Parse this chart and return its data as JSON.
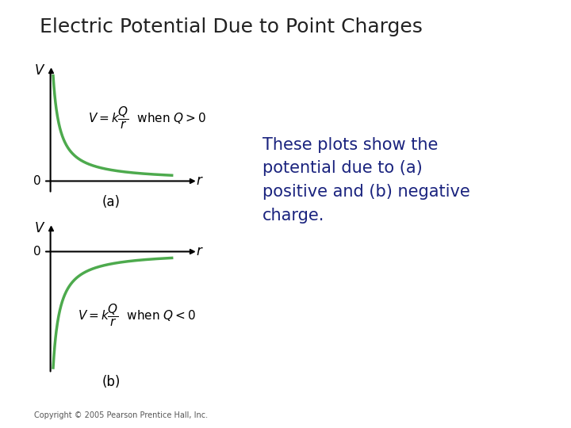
{
  "title": "Electric Potential Due to Point Charges",
  "title_color": "#222222",
  "title_fontsize": 18,
  "title_fontweight": "normal",
  "background_color": "#ffffff",
  "curve_color": "#4daa4d",
  "curve_linewidth": 2.5,
  "axes_color": "#000000",
  "text_color": "#000000",
  "label_color": "#1a237e",
  "eq_a": "$V = k\\dfrac{Q}{r}$  when $Q > 0$",
  "eq_b": "$V = k\\dfrac{Q}{r}$  when $Q < 0$",
  "label_a": "(a)",
  "label_b": "(b)",
  "desc_text": "These plots show the\npotential due to (a)\npositive and (b) negative\ncharge.",
  "copyright": "Copyright © 2005 Pearson Prentice Hall, Inc.",
  "r_min": 0.12,
  "desc_fontsize": 15,
  "eq_fontsize": 11,
  "axes_label_fontsize": 12
}
